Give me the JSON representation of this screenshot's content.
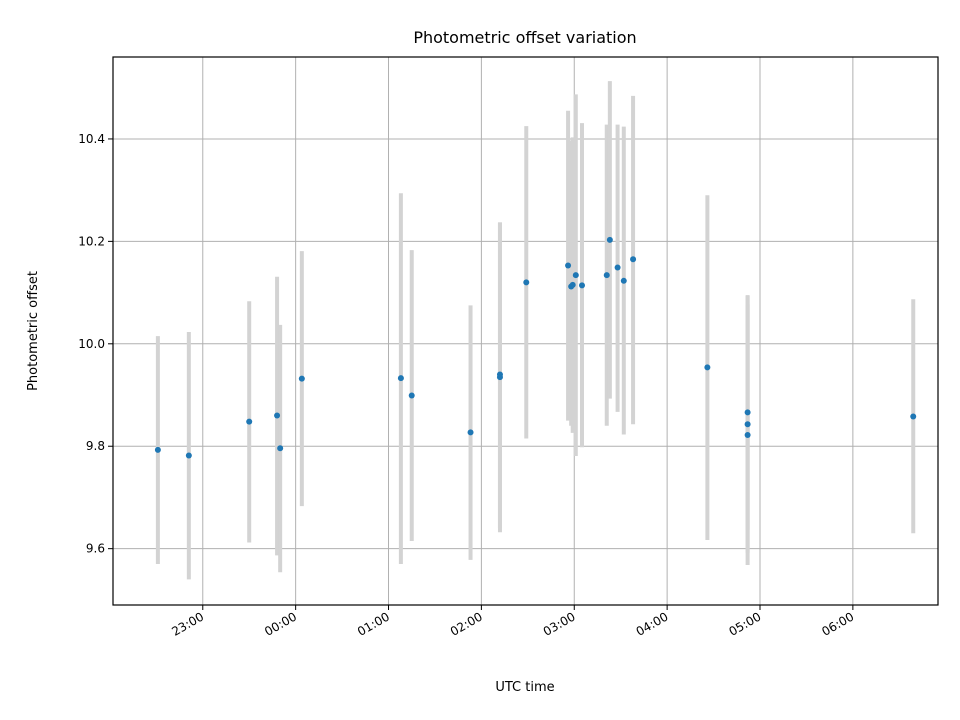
{
  "chart_data": {
    "type": "scatter",
    "title": "Photometric offset variation",
    "xlabel": "UTC time",
    "ylabel": "Photometric offset",
    "x_axis_kind": "time",
    "xlim": [
      "22:02",
      "06:55"
    ],
    "ylim": [
      9.49,
      10.56
    ],
    "grid": true,
    "x_ticks": [
      "23:00",
      "00:00",
      "01:00",
      "02:00",
      "03:00",
      "04:00",
      "05:00",
      "06:00"
    ],
    "y_ticks": [
      "9.6",
      "9.8",
      "10.0",
      "10.2",
      "10.4"
    ],
    "colors": {
      "point": "#1f77b4",
      "errorbar": "#d3d3d3",
      "grid": "#b0b0b0"
    },
    "series": [
      {
        "points": [
          {
            "x": "22:31",
            "y": 9.793,
            "y_low": 9.57,
            "y_high": 10.015
          },
          {
            "x": "22:51",
            "y": 9.782,
            "y_low": 9.54,
            "y_high": 10.023
          },
          {
            "x": "23:30",
            "y": 9.848,
            "y_low": 9.612,
            "y_high": 10.083
          },
          {
            "x": "23:48",
            "y": 9.86,
            "y_low": 9.587,
            "y_high": 10.131
          },
          {
            "x": "23:50",
            "y": 9.796,
            "y_low": 9.554,
            "y_high": 10.037
          },
          {
            "x": "00:04",
            "y": 9.932,
            "y_low": 9.683,
            "y_high": 10.181
          },
          {
            "x": "01:08",
            "y": 9.933,
            "y_low": 9.57,
            "y_high": 10.294
          },
          {
            "x": "01:15",
            "y": 9.899,
            "y_low": 9.615,
            "y_high": 10.183
          },
          {
            "x": "01:53",
            "y": 9.827,
            "y_low": 9.578,
            "y_high": 10.075
          },
          {
            "x": "02:12",
            "y": 9.94,
            "y_low": 9.64,
            "y_high": 10.237
          },
          {
            "x": "02:12",
            "y": 9.935,
            "y_low": 9.632,
            "y_high": 10.237
          },
          {
            "x": "02:29",
            "y": 10.12,
            "y_low": 9.815,
            "y_high": 10.425
          },
          {
            "x": "02:56",
            "y": 10.153,
            "y_low": 9.85,
            "y_high": 10.455
          },
          {
            "x": "02:58",
            "y": 10.112,
            "y_low": 9.84,
            "y_high": 10.397
          },
          {
            "x": "02:59",
            "y": 10.115,
            "y_low": 9.826,
            "y_high": 10.403
          },
          {
            "x": "03:01",
            "y": 10.134,
            "y_low": 9.781,
            "y_high": 10.487
          },
          {
            "x": "03:05",
            "y": 10.114,
            "y_low": 9.798,
            "y_high": 10.431
          },
          {
            "x": "03:21",
            "y": 10.134,
            "y_low": 9.84,
            "y_high": 10.428
          },
          {
            "x": "03:23",
            "y": 10.203,
            "y_low": 9.893,
            "y_high": 10.513
          },
          {
            "x": "03:28",
            "y": 10.149,
            "y_low": 9.867,
            "y_high": 10.428
          },
          {
            "x": "03:32",
            "y": 10.123,
            "y_low": 9.823,
            "y_high": 10.424
          },
          {
            "x": "03:38",
            "y": 10.165,
            "y_low": 9.843,
            "y_high": 10.484
          },
          {
            "x": "04:26",
            "y": 9.954,
            "y_low": 9.617,
            "y_high": 10.29
          },
          {
            "x": "04:52",
            "y": 9.866,
            "y_low": 9.637,
            "y_high": 10.095
          },
          {
            "x": "04:52",
            "y": 9.843,
            "y_low": 9.592,
            "y_high": 10.093
          },
          {
            "x": "04:52",
            "y": 9.822,
            "y_low": 9.568,
            "y_high": 10.077
          },
          {
            "x": "06:39",
            "y": 9.858,
            "y_low": 9.63,
            "y_high": 10.087
          }
        ]
      }
    ]
  }
}
